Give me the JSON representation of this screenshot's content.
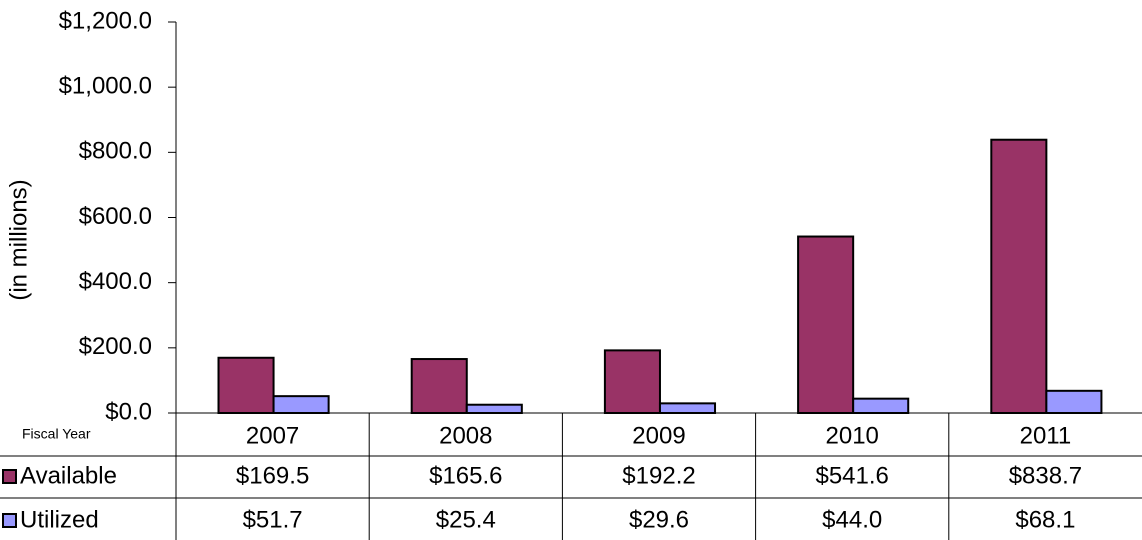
{
  "chart_data": {
    "type": "bar",
    "y_label": "(in millions)",
    "x_label": "Fiscal Year",
    "categories": [
      "2007",
      "2008",
      "2009",
      "2010",
      "2011"
    ],
    "series": [
      {
        "name": "Available",
        "color": "#993366",
        "values": [
          169.5,
          165.6,
          192.2,
          541.6,
          838.7
        ],
        "value_labels": [
          "$169.5",
          "$165.6",
          "$192.2",
          "$541.6",
          "$838.7"
        ]
      },
      {
        "name": "Utilized",
        "color": "#9999ff",
        "values": [
          51.7,
          25.4,
          29.6,
          44.0,
          68.1
        ],
        "value_labels": [
          "$51.7",
          "$25.4",
          "$29.6",
          "$44.0",
          "$68.1"
        ]
      }
    ],
    "ylim": [
      0,
      1200
    ],
    "yticks": [
      {
        "value": 0,
        "label": "$0.0"
      },
      {
        "value": 200,
        "label": "$200.0"
      },
      {
        "value": 400,
        "label": "$400.0"
      },
      {
        "value": 600,
        "label": "$600.0"
      },
      {
        "value": 800,
        "label": "$800.0"
      },
      {
        "value": 1000,
        "label": "$1,000.0"
      },
      {
        "value": 1200,
        "label": "$1,200.0"
      }
    ],
    "grid": false
  }
}
